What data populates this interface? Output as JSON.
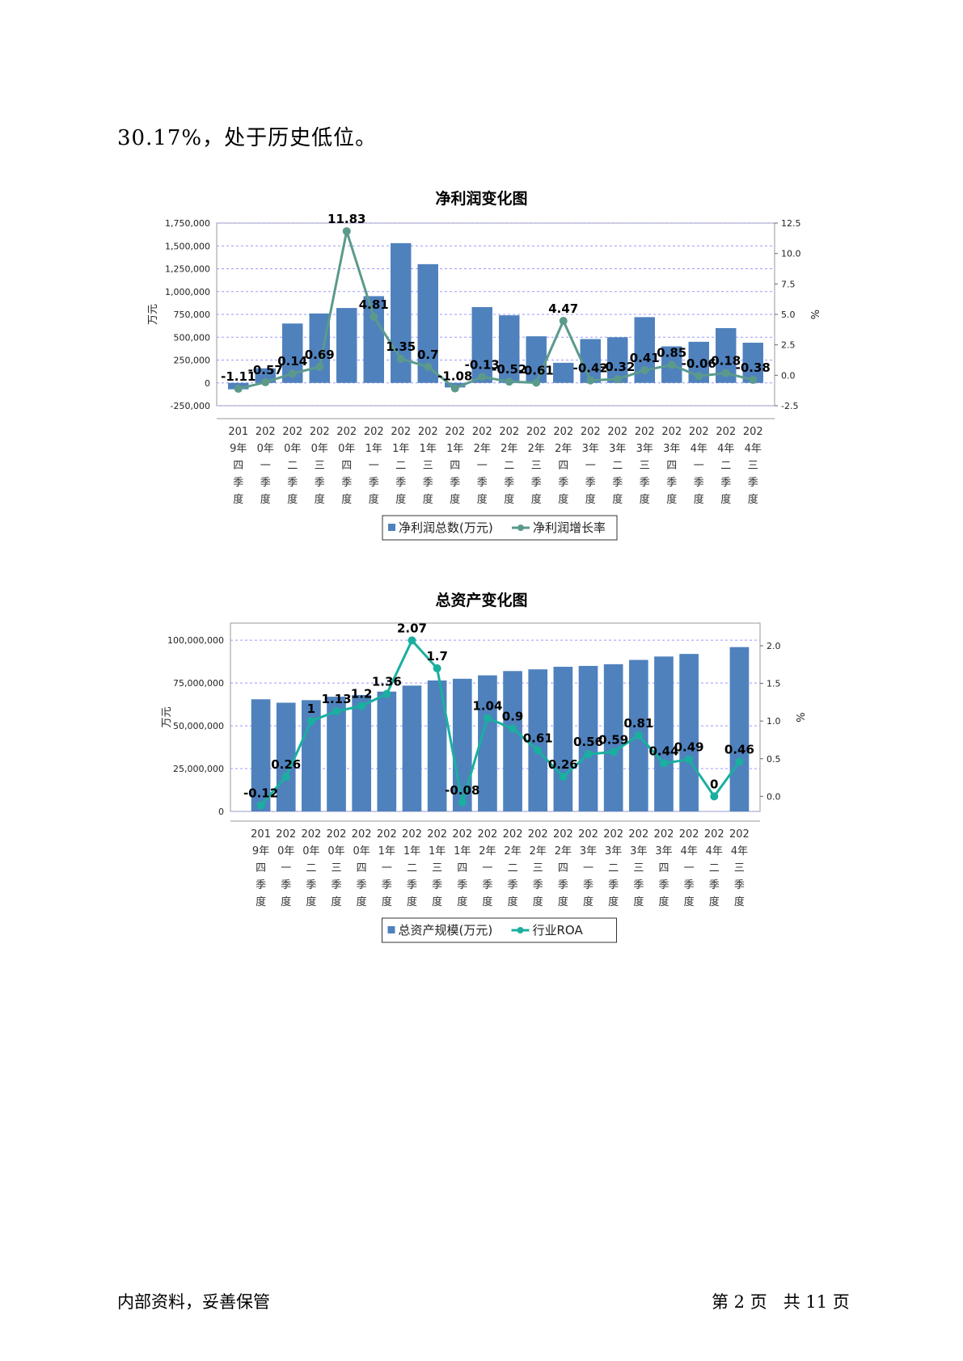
{
  "intro_text": "30.17%，处于历史低位。",
  "footer": {
    "left": "内部资料，妥善保管",
    "right": "第 2 页   共 11 页"
  },
  "categories": [
    "2019年四季度",
    "2020年一季度",
    "2020年二季度",
    "2020年三季度",
    "2020年四季度",
    "2021年一季度",
    "2021年二季度",
    "2021年三季度",
    "2021年四季度",
    "2022年一季度",
    "2022年二季度",
    "2022年三季度",
    "2022年四季度",
    "2023年一季度",
    "2023年二季度",
    "2023年三季度",
    "2023年四季度",
    "2024年一季度",
    "2024年二季度",
    "2024年三季度"
  ],
  "colors": {
    "bar": "#4f81bd",
    "line1": "#5b9a8b",
    "line2": "#1aaf9f",
    "grid": "#9999ff"
  },
  "chart_data": [
    {
      "type": "bar",
      "title": "净利润变化图",
      "ylabel": "万元",
      "y2label": "%",
      "ylim": [
        -250000,
        1750000
      ],
      "y_ticks": [
        "-250,000",
        "0",
        "250,000",
        "500,000",
        "750,000",
        "1,000,000",
        "1,250,000",
        "1,500,000",
        "1,750,000"
      ],
      "y2lim": [
        -2.5,
        12.5
      ],
      "y2_ticks": [
        "-2.5",
        "0.0",
        "2.5",
        "5.0",
        "7.5",
        "10.0",
        "12.5"
      ],
      "legend_position": "bottom",
      "series": [
        {
          "name": "净利润总数(万元)",
          "type": "bar",
          "values": [
            -70000,
            160000,
            650000,
            760000,
            820000,
            950000,
            1530000,
            1300000,
            -50000,
            830000,
            740000,
            510000,
            220000,
            480000,
            500000,
            720000,
            400000,
            450000,
            600000,
            440000
          ]
        },
        {
          "name": "净利润增长率",
          "type": "line",
          "axis": "right",
          "values": [
            -1.11,
            -0.57,
            0.14,
            0.69,
            11.83,
            4.81,
            1.35,
            0.7,
            -1.08,
            -0.13,
            -0.52,
            -0.61,
            4.47,
            -0.42,
            -0.32,
            0.41,
            0.85,
            -0.06,
            0.18,
            -0.38
          ],
          "labels": [
            "-1.11",
            "-0.57",
            "0.14",
            "0.69",
            "11.83",
            "4.81",
            "1.35",
            "0.7",
            "-1.08",
            "-0.13",
            "-0.52",
            "-0.61",
            "4.47",
            "-0.42",
            "-0.32",
            "0.41",
            "0.85",
            "-0.06",
            "0.18",
            "-0.38"
          ]
        }
      ]
    },
    {
      "type": "bar",
      "title": "总资产变化图",
      "ylabel": "万元",
      "y2label": "%",
      "ylim": [
        0,
        110000000
      ],
      "y_ticks": [
        "0",
        "25,000,000",
        "50,000,000",
        "75,000,000",
        "100,000,000"
      ],
      "y2lim": [
        -0.2,
        2.3
      ],
      "y2_ticks": [
        "0.0",
        "0.5",
        "1.0",
        "1.5",
        "2.0"
      ],
      "legend_position": "bottom",
      "series": [
        {
          "name": "总资产规模(万元)",
          "type": "bar",
          "values": [
            65500000,
            63500000,
            65000000,
            67000000,
            68000000,
            70000000,
            73500000,
            76500000,
            77500000,
            79500000,
            82000000,
            83000000,
            84500000,
            85000000,
            86000000,
            88500000,
            90500000,
            92000000,
            null,
            96000000
          ]
        },
        {
          "name": "行业ROA",
          "type": "line",
          "axis": "right",
          "values": [
            -0.12,
            0.26,
            1.0,
            1.13,
            1.2,
            1.36,
            2.07,
            1.7,
            -0.08,
            1.04,
            0.9,
            0.61,
            0.26,
            0.56,
            0.59,
            0.81,
            0.44,
            0.49,
            0.0,
            0.46
          ],
          "labels": [
            "-0.12",
            "0.26",
            "1",
            "1.13",
            "1.2",
            "1.36",
            "2.07",
            "1.7",
            "-0.08",
            "1.04",
            "0.9",
            "0.61",
            "0.26",
            "0.56",
            "0.59",
            "0.81",
            "0.44",
            "0.49",
            "0",
            "0.46"
          ]
        }
      ]
    }
  ]
}
